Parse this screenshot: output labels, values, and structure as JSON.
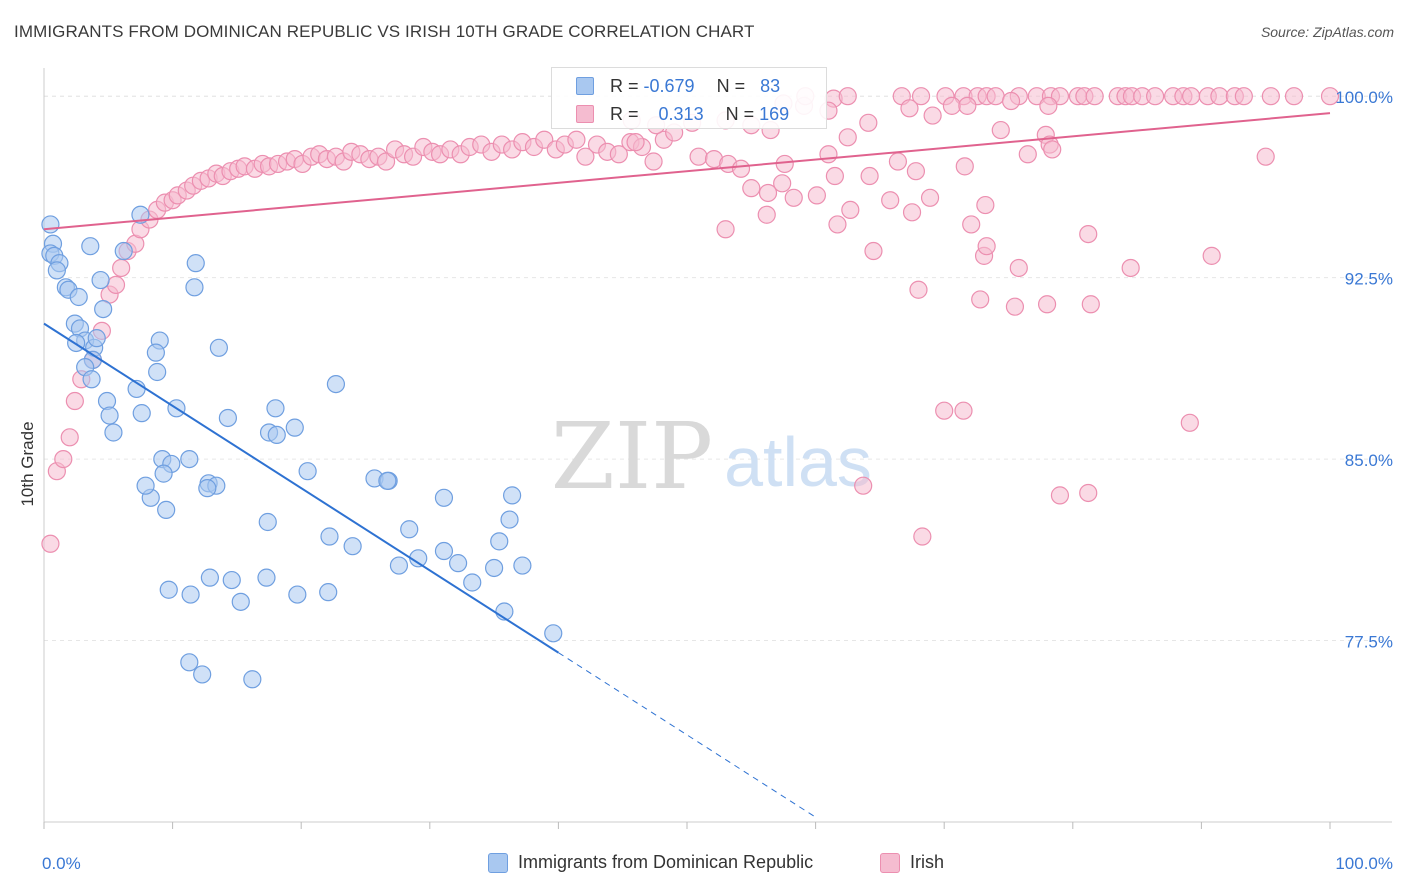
{
  "title": "IMMIGRANTS FROM DOMINICAN REPUBLIC VS IRISH 10TH GRADE CORRELATION CHART",
  "source": "Source: ZipAtlas.com",
  "watermark": {
    "zip": "ZIP",
    "atlas": "atlas"
  },
  "colors": {
    "blue_fill": "#a9c8f0",
    "blue_stroke": "#6f9fe0",
    "blue_line": "#2e72d2",
    "pink_fill": "#f5bcd0",
    "pink_stroke": "#ec8fb0",
    "pink_line": "#e0628e",
    "axis_label": "#3a78d4",
    "grid": "#e6e6e6"
  },
  "stats": [
    {
      "r_label": "R =",
      "r_value": "-0.679",
      "n_label": "N =",
      "n_value": "83"
    },
    {
      "r_label": "R =",
      "r_value": "0.313",
      "n_label": "N =",
      "n_value": "169"
    }
  ],
  "legend": {
    "series1": "Immigrants from Dominican Republic",
    "series2": "Irish"
  },
  "chart_data": {
    "type": "scatter",
    "xlabel": "",
    "ylabel": "10th Grade",
    "x_tick_labels": [
      "0.0%",
      "100.0%"
    ],
    "y_tick_labels": [
      "100.0%",
      "92.5%",
      "85.0%",
      "77.5%"
    ],
    "y_ticks": [
      100.0,
      92.5,
      85.0,
      77.5
    ],
    "xlim": [
      0,
      100
    ],
    "ylim": [
      70.0,
      101.0
    ],
    "grid": true,
    "series": [
      {
        "name": "Immigrants from Dominican Republic",
        "trend": {
          "x": [
            0,
            40
          ],
          "y": [
            90.6,
            77.0
          ],
          "dashed_to": [
            60,
            70.2
          ]
        },
        "points": [
          [
            0.5,
            94.7
          ],
          [
            0.7,
            93.9
          ],
          [
            0.5,
            93.5
          ],
          [
            0.8,
            93.4
          ],
          [
            1.2,
            93.1
          ],
          [
            1.0,
            92.8
          ],
          [
            1.7,
            92.1
          ],
          [
            1.9,
            92.0
          ],
          [
            3.6,
            93.8
          ],
          [
            2.4,
            90.6
          ],
          [
            2.8,
            90.4
          ],
          [
            3.2,
            89.9
          ],
          [
            2.5,
            89.8
          ],
          [
            3.9,
            89.6
          ],
          [
            4.1,
            90.0
          ],
          [
            3.8,
            89.1
          ],
          [
            3.2,
            88.8
          ],
          [
            3.7,
            88.3
          ],
          [
            2.7,
            91.7
          ],
          [
            4.4,
            92.4
          ],
          [
            4.6,
            91.2
          ],
          [
            7.5,
            95.1
          ],
          [
            6.2,
            93.6
          ],
          [
            11.8,
            93.1
          ],
          [
            11.7,
            92.1
          ],
          [
            9.0,
            89.9
          ],
          [
            8.7,
            89.4
          ],
          [
            13.6,
            89.6
          ],
          [
            8.8,
            88.6
          ],
          [
            7.2,
            87.9
          ],
          [
            4.9,
            87.4
          ],
          [
            5.1,
            86.8
          ],
          [
            7.6,
            86.9
          ],
          [
            10.3,
            87.1
          ],
          [
            5.4,
            86.1
          ],
          [
            11.3,
            85.0
          ],
          [
            9.2,
            85.0
          ],
          [
            9.9,
            84.8
          ],
          [
            12.8,
            84.0
          ],
          [
            9.3,
            84.4
          ],
          [
            13.4,
            83.9
          ],
          [
            12.7,
            83.8
          ],
          [
            14.3,
            86.7
          ],
          [
            18.0,
            87.1
          ],
          [
            17.5,
            86.1
          ],
          [
            18.1,
            86.0
          ],
          [
            19.5,
            86.3
          ],
          [
            22.7,
            88.1
          ],
          [
            17.4,
            82.4
          ],
          [
            9.5,
            82.9
          ],
          [
            8.3,
            83.4
          ],
          [
            7.9,
            83.9
          ],
          [
            22.2,
            81.8
          ],
          [
            24.0,
            81.4
          ],
          [
            25.7,
            84.2
          ],
          [
            26.8,
            84.1
          ],
          [
            28.4,
            82.1
          ],
          [
            27.6,
            80.6
          ],
          [
            29.1,
            80.9
          ],
          [
            31.1,
            83.4
          ],
          [
            31.1,
            81.2
          ],
          [
            32.2,
            80.7
          ],
          [
            33.3,
            79.9
          ],
          [
            35.4,
            81.6
          ],
          [
            36.4,
            83.5
          ],
          [
            36.2,
            82.5
          ],
          [
            37.2,
            80.6
          ],
          [
            35.0,
            80.5
          ],
          [
            12.9,
            80.1
          ],
          [
            14.6,
            80.0
          ],
          [
            11.4,
            79.4
          ],
          [
            9.7,
            79.6
          ],
          [
            15.3,
            79.1
          ],
          [
            17.3,
            80.1
          ],
          [
            19.7,
            79.4
          ],
          [
            22.1,
            79.5
          ],
          [
            35.8,
            78.7
          ],
          [
            39.6,
            77.8
          ],
          [
            11.3,
            76.6
          ],
          [
            12.3,
            76.1
          ],
          [
            16.2,
            75.9
          ],
          [
            26.7,
            84.1
          ],
          [
            20.5,
            84.5
          ]
        ]
      },
      {
        "name": "Irish",
        "trend": {
          "x": [
            0,
            100
          ],
          "y": [
            94.5,
            99.3
          ]
        },
        "points": [
          [
            0.5,
            81.5
          ],
          [
            1.0,
            84.5
          ],
          [
            1.5,
            85.0
          ],
          [
            2.0,
            85.9
          ],
          [
            2.4,
            87.4
          ],
          [
            2.9,
            88.3
          ],
          [
            3.8,
            89.1
          ],
          [
            4.5,
            90.3
          ],
          [
            5.1,
            91.8
          ],
          [
            5.6,
            92.2
          ],
          [
            6.0,
            92.9
          ],
          [
            6.5,
            93.6
          ],
          [
            7.1,
            93.9
          ],
          [
            7.5,
            94.5
          ],
          [
            8.2,
            94.9
          ],
          [
            8.8,
            95.3
          ],
          [
            9.4,
            95.6
          ],
          [
            10.0,
            95.7
          ],
          [
            10.4,
            95.9
          ],
          [
            11.1,
            96.1
          ],
          [
            11.6,
            96.3
          ],
          [
            12.2,
            96.5
          ],
          [
            12.8,
            96.6
          ],
          [
            13.4,
            96.8
          ],
          [
            13.9,
            96.7
          ],
          [
            14.5,
            96.9
          ],
          [
            15.1,
            97.0
          ],
          [
            15.6,
            97.1
          ],
          [
            16.4,
            97.0
          ],
          [
            17.0,
            97.2
          ],
          [
            17.5,
            97.1
          ],
          [
            18.2,
            97.2
          ],
          [
            18.9,
            97.3
          ],
          [
            19.5,
            97.4
          ],
          [
            20.1,
            97.2
          ],
          [
            20.8,
            97.5
          ],
          [
            21.4,
            97.6
          ],
          [
            22.0,
            97.4
          ],
          [
            22.7,
            97.5
          ],
          [
            23.3,
            97.3
          ],
          [
            23.9,
            97.7
          ],
          [
            24.6,
            97.6
          ],
          [
            25.3,
            97.4
          ],
          [
            26.0,
            97.5
          ],
          [
            26.6,
            97.3
          ],
          [
            27.3,
            97.8
          ],
          [
            28.0,
            97.6
          ],
          [
            28.7,
            97.5
          ],
          [
            29.5,
            97.9
          ],
          [
            30.2,
            97.7
          ],
          [
            30.8,
            97.6
          ],
          [
            31.6,
            97.8
          ],
          [
            32.4,
            97.6
          ],
          [
            33.1,
            97.9
          ],
          [
            34.0,
            98.0
          ],
          [
            34.8,
            97.7
          ],
          [
            35.6,
            98.0
          ],
          [
            36.4,
            97.8
          ],
          [
            37.2,
            98.1
          ],
          [
            38.1,
            97.9
          ],
          [
            38.9,
            98.2
          ],
          [
            39.8,
            97.8
          ],
          [
            40.5,
            98.0
          ],
          [
            41.4,
            98.2
          ],
          [
            42.1,
            97.5
          ],
          [
            43.0,
            98.0
          ],
          [
            43.8,
            97.7
          ],
          [
            44.7,
            97.6
          ],
          [
            45.6,
            98.1
          ],
          [
            46.5,
            97.9
          ],
          [
            47.4,
            97.3
          ],
          [
            48.2,
            98.2
          ],
          [
            49.0,
            98.5
          ],
          [
            47.6,
            98.8
          ],
          [
            50.4,
            98.9
          ],
          [
            53.0,
            99.0
          ],
          [
            55.0,
            98.8
          ],
          [
            45.7,
            99.0
          ],
          [
            46.0,
            98.1
          ],
          [
            56.5,
            98.6
          ],
          [
            57.5,
            99.7
          ],
          [
            59.1,
            99.6
          ],
          [
            61.4,
            99.9
          ],
          [
            62.5,
            100.0
          ],
          [
            59.2,
            100.0
          ],
          [
            61.0,
            99.4
          ],
          [
            64.1,
            98.9
          ],
          [
            62.5,
            98.3
          ],
          [
            61.0,
            97.6
          ],
          [
            66.7,
            100.0
          ],
          [
            68.2,
            100.0
          ],
          [
            70.1,
            100.0
          ],
          [
            71.5,
            100.0
          ],
          [
            72.6,
            100.0
          ],
          [
            73.3,
            100.0
          ],
          [
            74.0,
            100.0
          ],
          [
            75.8,
            100.0
          ],
          [
            77.2,
            100.0
          ],
          [
            78.3,
            100.0
          ],
          [
            79.0,
            100.0
          ],
          [
            80.4,
            100.0
          ],
          [
            80.9,
            100.0
          ],
          [
            81.7,
            100.0
          ],
          [
            83.5,
            100.0
          ],
          [
            84.1,
            100.0
          ],
          [
            84.6,
            100.0
          ],
          [
            85.4,
            100.0
          ],
          [
            86.4,
            100.0
          ],
          [
            87.8,
            100.0
          ],
          [
            88.6,
            100.0
          ],
          [
            89.2,
            100.0
          ],
          [
            90.5,
            100.0
          ],
          [
            91.4,
            100.0
          ],
          [
            92.6,
            100.0
          ],
          [
            93.3,
            100.0
          ],
          [
            95.4,
            100.0
          ],
          [
            97.2,
            100.0
          ],
          [
            100.0,
            100.0
          ],
          [
            67.3,
            99.5
          ],
          [
            70.6,
            99.6
          ],
          [
            71.8,
            99.6
          ],
          [
            75.2,
            99.8
          ],
          [
            78.1,
            99.6
          ],
          [
            69.1,
            99.2
          ],
          [
            74.4,
            98.6
          ],
          [
            77.9,
            98.4
          ],
          [
            78.2,
            98.0
          ],
          [
            66.4,
            97.3
          ],
          [
            67.8,
            96.9
          ],
          [
            71.6,
            97.1
          ],
          [
            76.5,
            97.6
          ],
          [
            78.4,
            97.8
          ],
          [
            64.2,
            96.7
          ],
          [
            61.5,
            96.7
          ],
          [
            57.4,
            96.4
          ],
          [
            58.3,
            95.8
          ],
          [
            55.0,
            96.2
          ],
          [
            56.3,
            96.0
          ],
          [
            50.9,
            97.5
          ],
          [
            52.1,
            97.4
          ],
          [
            53.2,
            97.2
          ],
          [
            54.2,
            97.0
          ],
          [
            57.6,
            97.2
          ],
          [
            53.0,
            94.5
          ],
          [
            56.2,
            95.1
          ],
          [
            61.7,
            94.7
          ],
          [
            64.5,
            93.6
          ],
          [
            68.9,
            95.8
          ],
          [
            67.5,
            95.2
          ],
          [
            62.7,
            95.3
          ],
          [
            60.1,
            95.9
          ],
          [
            65.8,
            95.7
          ],
          [
            73.1,
            93.4
          ],
          [
            73.2,
            95.5
          ],
          [
            72.1,
            94.7
          ],
          [
            73.3,
            93.8
          ],
          [
            75.8,
            92.9
          ],
          [
            81.2,
            94.3
          ],
          [
            78.0,
            91.4
          ],
          [
            81.4,
            91.4
          ],
          [
            84.5,
            92.9
          ],
          [
            95.0,
            97.5
          ],
          [
            90.8,
            93.4
          ],
          [
            89.1,
            86.5
          ],
          [
            81.2,
            83.6
          ],
          [
            79.0,
            83.5
          ],
          [
            70.0,
            87.0
          ],
          [
            63.7,
            83.9
          ],
          [
            68.3,
            81.8
          ],
          [
            68.0,
            92.0
          ],
          [
            75.5,
            91.3
          ],
          [
            71.5,
            87.0
          ],
          [
            72.8,
            91.6
          ]
        ]
      }
    ]
  }
}
